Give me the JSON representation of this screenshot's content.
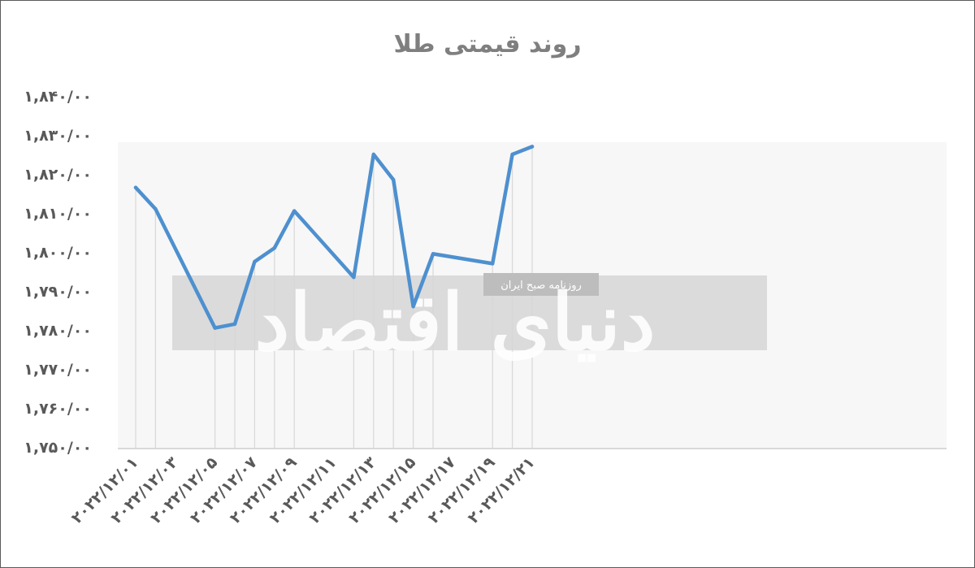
{
  "chart_data": {
    "type": "line",
    "title": "روند قیمتی طلا",
    "xlabel": "",
    "ylabel": "",
    "x": [
      "2022/12/01",
      "2022/12/02",
      "2022/12/05",
      "2022/12/06",
      "2022/12/07",
      "2022/12/08",
      "2022/12/09",
      "2022/12/12",
      "2022/12/13",
      "2022/12/14",
      "2022/12/15",
      "2022/12/16",
      "2022/12/19",
      "2022/12/20",
      "2022/12/21"
    ],
    "x_tick_labels": [
      "۲۰۲۲/۱۲/۰۱",
      "۲۰۲۲/۱۲/۰۳",
      "۲۰۲۲/۱۲/۰۵",
      "۲۰۲۲/۱۲/۰۷",
      "۲۰۲۲/۱۲/۰۹",
      "۲۰۲۲/۱۲/۱۱",
      "۲۰۲۲/۱۲/۱۳",
      "۲۰۲۲/۱۲/۱۵",
      "۲۰۲۲/۱۲/۱۷",
      "۲۰۲۲/۱۲/۱۹",
      "۲۰۲۲/۱۲/۲۱"
    ],
    "y_tick_labels": [
      "۱,۸۴۰/۰۰",
      "۱,۸۳۰/۰۰",
      "۱,۸۲۰/۰۰",
      "۱,۸۱۰/۰۰",
      "۱,۸۰۰/۰۰",
      "۱,۷۹۰/۰۰",
      "۱,۷۸۰/۰۰",
      "۱,۷۷۰/۰۰",
      "۱,۷۶۰/۰۰",
      "۱,۷۵۰/۰۰"
    ],
    "series": [
      {
        "values": [
          1816.5,
          1811.0,
          1780.5,
          1781.5,
          1797.5,
          1801.0,
          1810.5,
          1793.5,
          1825.0,
          1818.5,
          1786.0,
          1799.5,
          1797.0,
          1825.0,
          1827.0
        ]
      }
    ],
    "ylim": [
      1750,
      1840
    ],
    "grid": "vertical",
    "legend": "none",
    "line_color": "#4e90cf"
  },
  "watermark": {
    "tagline": "روزنامه صبح ایران",
    "logo_text": "دنیای اقتصاد"
  }
}
